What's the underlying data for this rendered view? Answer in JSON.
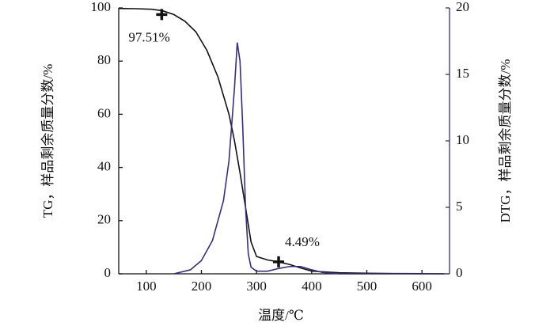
{
  "chart_data": {
    "type": "line",
    "xlabel": "温度/℃",
    "ylabel": "TG，样品剩余质量分数/%",
    "y2label": "DTG，样品剩余质量分数/%",
    "xlim": [
      50,
      650
    ],
    "xticks": [
      100,
      200,
      300,
      400,
      500,
      600
    ],
    "ylim": [
      0,
      100
    ],
    "yticks": [
      0,
      20,
      40,
      60,
      80,
      100
    ],
    "y2lim": [
      0,
      20
    ],
    "y2ticks": [
      0,
      5,
      10,
      15,
      20
    ],
    "y2color": "#3b2a85",
    "series": [
      {
        "name": "TG",
        "color": "#111111",
        "x": [
          50,
          80,
          110,
          130,
          150,
          170,
          190,
          210,
          230,
          250,
          260,
          270,
          280,
          290,
          300,
          320,
          340,
          360,
          380,
          400,
          450,
          500,
          550,
          600,
          640
        ],
        "values": [
          99.8,
          99.7,
          99.5,
          98.9,
          97.5,
          95,
          91,
          84,
          74,
          60,
          50,
          38,
          25,
          12,
          6.5,
          5.2,
          4.49,
          3.5,
          2.2,
          1.0,
          0.4,
          0.2,
          0.1,
          0.05,
          0
        ]
      },
      {
        "name": "DTG",
        "color": "#3b2a85",
        "axis": "y2",
        "x": [
          150,
          180,
          200,
          220,
          240,
          250,
          260,
          265,
          270,
          275,
          280,
          285,
          290,
          300,
          320,
          340,
          360,
          380,
          400,
          420,
          450,
          500,
          640
        ],
        "values": [
          0,
          0.3,
          1.0,
          2.5,
          5.5,
          8.5,
          14,
          17.4,
          16,
          11,
          5,
          1.5,
          0.5,
          0.2,
          0.2,
          0.4,
          0.55,
          0.55,
          0.3,
          0.1,
          0,
          0,
          0
        ]
      }
    ],
    "markers": [
      {
        "x": 128,
        "y": 97.51,
        "label": "97.51%"
      },
      {
        "x": 340,
        "y": 4.49,
        "label": "4.49%"
      }
    ]
  }
}
